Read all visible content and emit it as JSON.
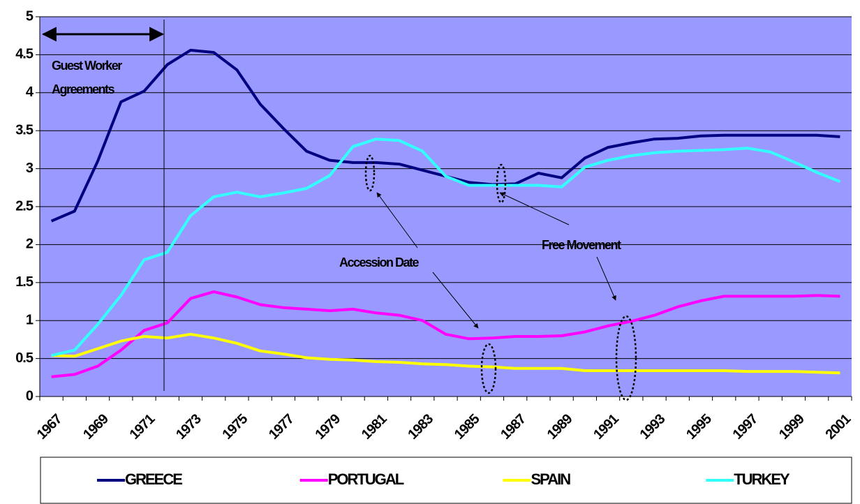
{
  "chart_data": {
    "type": "line",
    "categories": [
      "1967",
      null,
      "1969",
      null,
      "1971",
      null,
      "1973",
      null,
      "1975",
      null,
      "1977",
      null,
      "1979",
      null,
      "1981",
      null,
      "1983",
      null,
      "1985",
      null,
      "1987",
      null,
      "1989",
      null,
      "1991",
      null,
      "1993",
      null,
      "1995",
      null,
      "1997",
      null,
      "1999",
      null,
      "2001"
    ],
    "ylim": [
      0,
      5
    ],
    "yticks": [
      0,
      0.5,
      1,
      1.5,
      2,
      2.5,
      3,
      3.5,
      4,
      4.5,
      5
    ],
    "grid": true,
    "background": "#9999ff",
    "legend": "bottom",
    "annotations": [
      "Guest Worker Agreements",
      "Accession Date",
      "Free Movement"
    ],
    "series": [
      {
        "name": "GREECE",
        "color": "#000080",
        "values": [
          2.31,
          2.44,
          3.1,
          3.88,
          4.02,
          4.37,
          4.56,
          4.53,
          4.3,
          3.85,
          3.53,
          3.23,
          3.11,
          3.08,
          3.08,
          3.06,
          2.98,
          2.9,
          2.82,
          2.79,
          2.8,
          2.94,
          2.88,
          3.14,
          3.28,
          3.34,
          3.39,
          3.4,
          3.43,
          3.44,
          3.44,
          3.44,
          3.44,
          3.44,
          3.42
        ]
      },
      {
        "name": "PORTUGAL",
        "color": "#ff00ff",
        "values": [
          0.26,
          0.29,
          0.4,
          0.61,
          0.87,
          0.97,
          1.29,
          1.38,
          1.31,
          1.21,
          1.17,
          1.15,
          1.13,
          1.15,
          1.1,
          1.07,
          1.0,
          0.82,
          0.76,
          0.77,
          0.79,
          0.79,
          0.8,
          0.85,
          0.93,
          0.99,
          1.07,
          1.18,
          1.26,
          1.32,
          1.32,
          1.32,
          1.32,
          1.33,
          1.32
        ]
      },
      {
        "name": "SPAIN",
        "color": "#ffff00",
        "values": [
          0.54,
          0.53,
          0.63,
          0.73,
          0.79,
          0.77,
          0.82,
          0.77,
          0.7,
          0.6,
          0.56,
          0.51,
          0.49,
          0.48,
          0.46,
          0.45,
          0.43,
          0.42,
          0.4,
          0.39,
          0.37,
          0.37,
          0.37,
          0.34,
          0.34,
          0.34,
          0.34,
          0.34,
          0.34,
          0.34,
          0.33,
          0.33,
          0.33,
          0.32,
          0.31
        ]
      },
      {
        "name": "TURKEY",
        "color": "#33ffff",
        "values": [
          0.54,
          0.61,
          0.95,
          1.33,
          1.8,
          1.9,
          2.38,
          2.63,
          2.69,
          2.63,
          2.68,
          2.74,
          2.91,
          3.29,
          3.39,
          3.37,
          3.23,
          2.9,
          2.78,
          2.78,
          2.78,
          2.78,
          2.76,
          3.02,
          3.11,
          3.17,
          3.21,
          3.23,
          3.24,
          3.25,
          3.27,
          3.22,
          3.09,
          2.95,
          2.83
        ]
      }
    ]
  }
}
